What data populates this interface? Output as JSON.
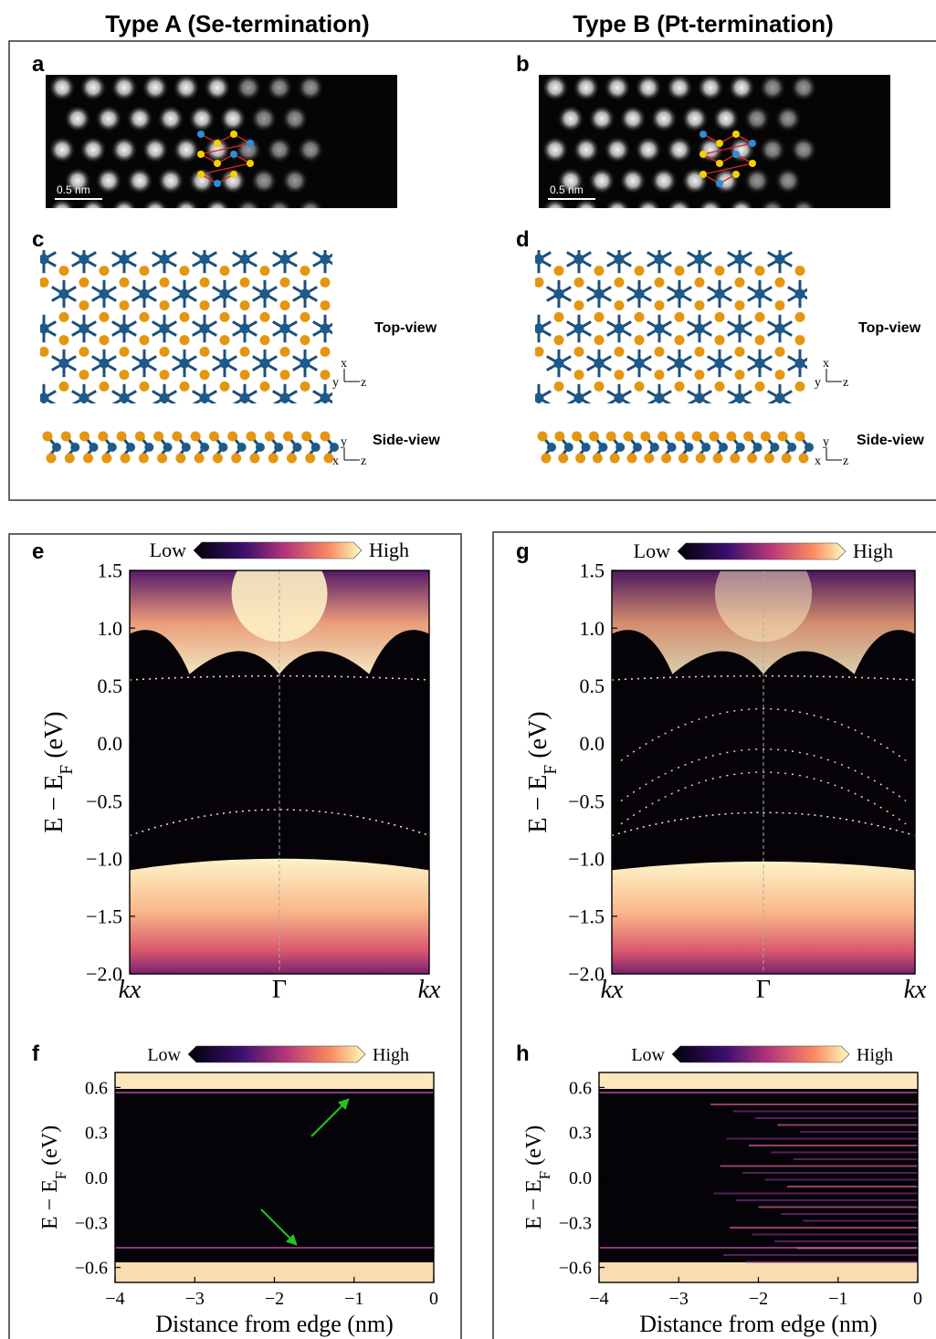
{
  "titles": [
    "Type A (Se-termination)",
    "Type B (Pt-termination)"
  ],
  "panels": {
    "a": {
      "letter": "a",
      "scale_bar": "0.5 nm"
    },
    "b": {
      "letter": "b",
      "scale_bar": "0.5 nm"
    },
    "c": {
      "letter": "c",
      "top_label": "Top-view",
      "side_label": "Side-view",
      "top_axes": [
        "x",
        "y",
        "z"
      ],
      "side_axes": [
        "y",
        "x",
        "z"
      ]
    },
    "d": {
      "letter": "d",
      "top_label": "Top-view",
      "side_label": "Side-view",
      "top_axes": [
        "x",
        "y",
        "z"
      ],
      "side_axes": [
        "y",
        "x",
        "z"
      ]
    },
    "e": {
      "letter": "e",
      "colorbar": [
        "Low",
        "High"
      ],
      "ylabel": {
        "main": "E − E",
        "sub": "F",
        "unit": " (eV)"
      },
      "ylim": [
        -2,
        1.5
      ],
      "yticks": [
        1.5,
        {
          "value": 1,
          "label": "1.0"
        },
        0.5,
        {
          "value": 0,
          "label": "0.0"
        },
        {
          "value": -0.5,
          "label": "−0.5"
        },
        {
          "value": -1,
          "label": "−1.0"
        },
        {
          "value": -1.5,
          "label": "−1.5"
        },
        {
          "value": -2,
          "label": "−2.0"
        }
      ],
      "xticks": [
        "kx",
        "Γ",
        "kx"
      ]
    },
    "g": {
      "letter": "g",
      "colorbar": [
        "Low",
        "High"
      ],
      "ylabel": {
        "main": "E − E",
        "sub": "F",
        "unit": " (eV)"
      },
      "ylim": [
        -2,
        1.5
      ],
      "yticks": [
        1.5,
        {
          "value": 1,
          "label": "1.0"
        },
        0.5,
        {
          "value": 0,
          "label": "0.0"
        },
        {
          "value": -0.5,
          "label": "−0.5"
        },
        {
          "value": -1,
          "label": "−1.0"
        },
        {
          "value": -1.5,
          "label": "−1.5"
        },
        {
          "value": -2,
          "label": "−2.0"
        }
      ],
      "xticks": [
        "kx",
        "Γ",
        "kx"
      ]
    },
    "f": {
      "letter": "f",
      "colorbar": [
        "Low",
        "High"
      ],
      "ylabel": {
        "main": "E − E",
        "sub": "F",
        "unit": " (eV)"
      },
      "ylim": [
        -0.7,
        0.7
      ],
      "yticks": [
        0.6,
        0.3,
        {
          "value": 0,
          "label": "0.0"
        },
        {
          "value": -0.3,
          "label": "−0.3"
        },
        {
          "value": -0.6,
          "label": "−0.6"
        }
      ],
      "xlim": [
        -4,
        0
      ],
      "xticks": [
        {
          "value": -4,
          "label": "−4"
        },
        {
          "value": -3,
          "label": "−3"
        },
        {
          "value": -2,
          "label": "−2"
        },
        {
          "value": -1,
          "label": "−1"
        },
        0
      ],
      "xlabel": "Distance from edge (nm)"
    },
    "h": {
      "letter": "h",
      "colorbar": [
        "Low",
        "High"
      ],
      "ylabel": {
        "main": "E − E",
        "sub": "F",
        "unit": " (eV)"
      },
      "ylim": [
        -0.7,
        0.7
      ],
      "yticks": [
        0.6,
        0.3,
        {
          "value": 0,
          "label": "0.0"
        },
        {
          "value": -0.3,
          "label": "−0.3"
        },
        {
          "value": -0.6,
          "label": "−0.6"
        }
      ],
      "xlim": [
        -4,
        0
      ],
      "xticks": [
        {
          "value": -4,
          "label": "−4"
        },
        {
          "value": -3,
          "label": "−3"
        },
        {
          "value": -2,
          "label": "−2"
        },
        {
          "value": -1,
          "label": "−1"
        },
        0
      ],
      "xlabel": "Distance from edge (nm)"
    }
  }
}
